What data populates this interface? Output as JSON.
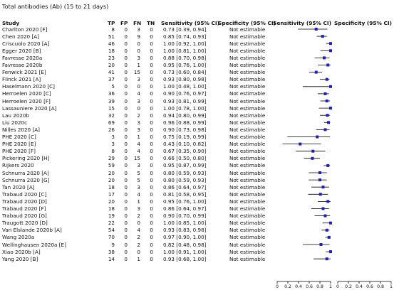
{
  "title": "Total antibodies (Ab) (15 to 21 days)",
  "headers": {
    "study": "Study",
    "tp": "TP",
    "fp": "FP",
    "fn": "FN",
    "tn": "TN",
    "sens": "Sensitivity (95% CI)",
    "spec": "Specificity (95% CI)",
    "plot_sens": "Sensitivity (95% CI)",
    "plot_spec": "Specificity (95% CI)"
  },
  "chart_data": {
    "type": "forest",
    "title": "Total antibodies (Ab) (15 to 21 days)",
    "x_ticks": [
      "0",
      "0.2",
      "0.4",
      "0.6",
      "0.8",
      "1"
    ],
    "xlim": [
      0,
      1
    ],
    "marker_color": "#1f1fb4",
    "studies": [
      {
        "study": "Charlton 2020 [F]",
        "tp": 8,
        "fp": 0,
        "fn": 3,
        "tn": 0,
        "sens": 0.73,
        "lo": 0.39,
        "hi": 0.94,
        "sens_text": "0.73 [0.39, 0.94]",
        "spec_text": "Not estimable"
      },
      {
        "study": "Chen 2020 [A]",
        "tp": 51,
        "fp": 0,
        "fn": 9,
        "tn": 0,
        "sens": 0.85,
        "lo": 0.74,
        "hi": 0.93,
        "sens_text": "0.85 [0.74, 0.93]",
        "spec_text": "Not estimable"
      },
      {
        "study": "Criscuolo 2020 [A]",
        "tp": 46,
        "fp": 0,
        "fn": 0,
        "tn": 0,
        "sens": 1.0,
        "lo": 0.92,
        "hi": 1.0,
        "sens_text": "1.00 [0.92, 1.00]",
        "spec_text": "Not estimable"
      },
      {
        "study": "Egger 2020 [B]",
        "tp": 18,
        "fp": 0,
        "fn": 0,
        "tn": 0,
        "sens": 1.0,
        "lo": 0.81,
        "hi": 1.0,
        "sens_text": "1.00 [0.81, 1.00]",
        "spec_text": "Not estimable"
      },
      {
        "study": "Favresse 2020a",
        "tp": 23,
        "fp": 0,
        "fn": 3,
        "tn": 0,
        "sens": 0.88,
        "lo": 0.7,
        "hi": 0.98,
        "sens_text": "0.88 [0.70, 0.98]",
        "spec_text": "Not estimable"
      },
      {
        "study": "Favresse 2020b",
        "tp": 20,
        "fp": 0,
        "fn": 1,
        "tn": 0,
        "sens": 0.95,
        "lo": 0.76,
        "hi": 1.0,
        "sens_text": "0.95 [0.76, 1.00]",
        "spec_text": "Not estimable"
      },
      {
        "study": "Fenwick 2021 [E]",
        "tp": 41,
        "fp": 0,
        "fn": 15,
        "tn": 0,
        "sens": 0.73,
        "lo": 0.6,
        "hi": 0.84,
        "sens_text": "0.73 [0.60, 0.84]",
        "spec_text": "Not estimable"
      },
      {
        "study": "Flinck 2021 [A]",
        "tp": 37,
        "fp": 0,
        "fn": 3,
        "tn": 0,
        "sens": 0.93,
        "lo": 0.8,
        "hi": 0.98,
        "sens_text": "0.93 [0.80, 0.98]",
        "spec_text": "Not estimable"
      },
      {
        "study": "Haselmann 2020 [C]",
        "tp": 5,
        "fp": 0,
        "fn": 0,
        "tn": 0,
        "sens": 1.0,
        "lo": 0.48,
        "hi": 1.0,
        "sens_text": "1.00 [0.48, 1.00]",
        "spec_text": "Not estimable"
      },
      {
        "study": "Herroelen 2020 [C]",
        "tp": 36,
        "fp": 0,
        "fn": 4,
        "tn": 0,
        "sens": 0.9,
        "lo": 0.76,
        "hi": 0.97,
        "sens_text": "0.90 [0.76, 0.97]",
        "spec_text": "Not estimable"
      },
      {
        "study": "Herroelen 2020 [F]",
        "tp": 39,
        "fp": 0,
        "fn": 3,
        "tn": 0,
        "sens": 0.93,
        "lo": 0.81,
        "hi": 0.99,
        "sens_text": "0.93 [0.81, 0.99]",
        "spec_text": "Not estimable"
      },
      {
        "study": "Lassauniere 2020 [A]",
        "tp": 15,
        "fp": 0,
        "fn": 0,
        "tn": 0,
        "sens": 1.0,
        "lo": 0.78,
        "hi": 1.0,
        "sens_text": "1.00 [0.78, 1.00]",
        "spec_text": "Not estimable"
      },
      {
        "study": "Lau 2020b",
        "tp": 32,
        "fp": 0,
        "fn": 2,
        "tn": 0,
        "sens": 0.94,
        "lo": 0.8,
        "hi": 0.99,
        "sens_text": "0.94 [0.80, 0.99]",
        "spec_text": "Not estimable"
      },
      {
        "study": "Liu 2020c",
        "tp": 69,
        "fp": 0,
        "fn": 3,
        "tn": 0,
        "sens": 0.96,
        "lo": 0.88,
        "hi": 0.99,
        "sens_text": "0.96 [0.88, 0.99]",
        "spec_text": "Not estimable"
      },
      {
        "study": "Nilles 2020 [A]",
        "tp": 26,
        "fp": 0,
        "fn": 3,
        "tn": 0,
        "sens": 0.9,
        "lo": 0.73,
        "hi": 0.98,
        "sens_text": "0.90 [0.73, 0.98]",
        "spec_text": "Not estimable"
      },
      {
        "study": "PHE 2020 [C]",
        "tp": 3,
        "fp": 0,
        "fn": 1,
        "tn": 0,
        "sens": 0.75,
        "lo": 0.19,
        "hi": 0.99,
        "sens_text": "0.75 [0.19, 0.99]",
        "spec_text": "Not estimable"
      },
      {
        "study": "PHE 2020 [E]",
        "tp": 3,
        "fp": 0,
        "fn": 4,
        "tn": 0,
        "sens": 0.43,
        "lo": 0.1,
        "hi": 0.82,
        "sens_text": "0.43 [0.10, 0.82]",
        "spec_text": "Not estimable"
      },
      {
        "study": "PHE 2020 [F]",
        "tp": 8,
        "fp": 0,
        "fn": 4,
        "tn": 0,
        "sens": 0.67,
        "lo": 0.35,
        "hi": 0.9,
        "sens_text": "0.67 [0.35, 0.90]",
        "spec_text": "Not estimable"
      },
      {
        "study": "Pickering 2020 [H]",
        "tp": 29,
        "fp": 0,
        "fn": 15,
        "tn": 0,
        "sens": 0.66,
        "lo": 0.5,
        "hi": 0.8,
        "sens_text": "0.66 [0.50, 0.80]",
        "spec_text": "Not estimable"
      },
      {
        "study": "Rijkers 2020",
        "tp": 59,
        "fp": 0,
        "fn": 3,
        "tn": 0,
        "sens": 0.95,
        "lo": 0.87,
        "hi": 0.99,
        "sens_text": "0.95 [0.87, 0.99]",
        "spec_text": "Not estimable"
      },
      {
        "study": "Schnurra 2020 [A]",
        "tp": 20,
        "fp": 0,
        "fn": 5,
        "tn": 0,
        "sens": 0.8,
        "lo": 0.59,
        "hi": 0.93,
        "sens_text": "0.80 [0.59, 0.93]",
        "spec_text": "Not estimable"
      },
      {
        "study": "Schnurra 2020 [G]",
        "tp": 20,
        "fp": 0,
        "fn": 5,
        "tn": 0,
        "sens": 0.8,
        "lo": 0.59,
        "hi": 0.93,
        "sens_text": "0.80 [0.59, 0.93]",
        "spec_text": "Not estimable"
      },
      {
        "study": "Tan 2020 [A]",
        "tp": 18,
        "fp": 0,
        "fn": 3,
        "tn": 0,
        "sens": 0.86,
        "lo": 0.64,
        "hi": 0.97,
        "sens_text": "0.86 [0.64, 0.97]",
        "spec_text": "Not estimable"
      },
      {
        "study": "Trabaud 2020 [C]",
        "tp": 17,
        "fp": 0,
        "fn": 4,
        "tn": 0,
        "sens": 0.81,
        "lo": 0.58,
        "hi": 0.95,
        "sens_text": "0.81 [0.58, 0.95]",
        "spec_text": "Not estimable"
      },
      {
        "study": "Trabaud 2020 [D]",
        "tp": 20,
        "fp": 0,
        "fn": 1,
        "tn": 0,
        "sens": 0.95,
        "lo": 0.76,
        "hi": 1.0,
        "sens_text": "0.95 [0.76, 1.00]",
        "spec_text": "Not estimable"
      },
      {
        "study": "Trabaud 2020 [F]",
        "tp": 18,
        "fp": 0,
        "fn": 3,
        "tn": 0,
        "sens": 0.86,
        "lo": 0.64,
        "hi": 0.97,
        "sens_text": "0.86 [0.64, 0.97]",
        "spec_text": "Not estimable"
      },
      {
        "study": "Trabaud 2020 [G]",
        "tp": 19,
        "fp": 0,
        "fn": 2,
        "tn": 0,
        "sens": 0.9,
        "lo": 0.7,
        "hi": 0.99,
        "sens_text": "0.90 [0.70, 0.99]",
        "spec_text": "Not estimable"
      },
      {
        "study": "Traugott 2020 [D]",
        "tp": 22,
        "fp": 0,
        "fn": 0,
        "tn": 0,
        "sens": 1.0,
        "lo": 0.85,
        "hi": 1.0,
        "sens_text": "1.00 [0.85, 1.00]",
        "spec_text": "Not estimable"
      },
      {
        "study": "Van Elslande 2020b [A]",
        "tp": 54,
        "fp": 0,
        "fn": 4,
        "tn": 0,
        "sens": 0.93,
        "lo": 0.83,
        "hi": 0.98,
        "sens_text": "0.93 [0.83, 0.98]",
        "spec_text": "Not estimable"
      },
      {
        "study": "Wang 2020a",
        "tp": 70,
        "fp": 0,
        "fn": 2,
        "tn": 0,
        "sens": 0.97,
        "lo": 0.9,
        "hi": 1.0,
        "sens_text": "0.97 [0.90, 1.00]",
        "spec_text": "Not estimable"
      },
      {
        "study": "Wellinghausen 2020a [E]",
        "tp": 9,
        "fp": 0,
        "fn": 2,
        "tn": 0,
        "sens": 0.82,
        "lo": 0.48,
        "hi": 0.98,
        "sens_text": "0.82 [0.48, 0.98]",
        "spec_text": "Not estimable"
      },
      {
        "study": "Xiao 2020b [A]",
        "tp": 38,
        "fp": 0,
        "fn": 0,
        "tn": 0,
        "sens": 1.0,
        "lo": 0.91,
        "hi": 1.0,
        "sens_text": "1.00 [0.91, 1.00]",
        "spec_text": "Not estimable"
      },
      {
        "study": "Yang 2020 [B]",
        "tp": 14,
        "fp": 0,
        "fn": 1,
        "tn": 0,
        "sens": 0.93,
        "lo": 0.68,
        "hi": 1.0,
        "sens_text": "0.93 [0.68, 1.00]",
        "spec_text": "Not estimable"
      }
    ]
  }
}
